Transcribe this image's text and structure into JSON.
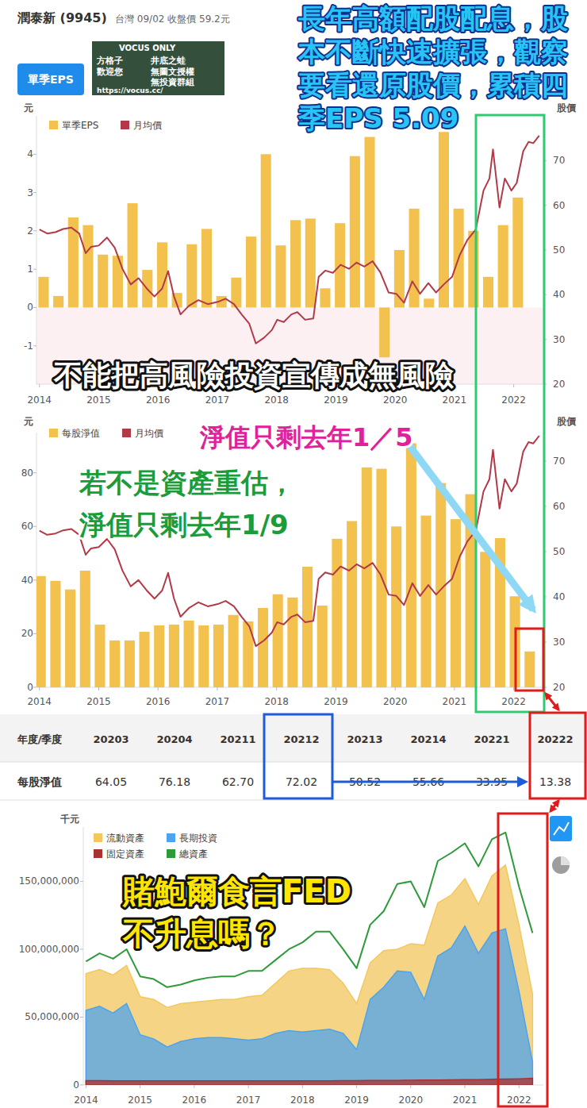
{
  "header": {
    "title": "潤泰新 (9945)",
    "subtitle": "台灣 09/02 收盤價 59.2元"
  },
  "watermark": [
    "VOCUS ONLY",
    "方格子",
    "井底之蛙",
    "歡迎您",
    "無圖文授權",
    "無投資群組",
    "https://vocus.cc/"
  ],
  "tab": "單季EPS",
  "annotations": {
    "top_note": [
      "長年高額配股配息，股",
      "本不斷快速擴張，觀察",
      "要看還原股價，累積四",
      "季EPS 5.09"
    ],
    "warning": "不能把高風險投資宣傳成無風險",
    "nav_note": "淨值只剩去年1／5",
    "revalue_note": [
      "若不是資產重估，",
      "淨值只剩去年1/9"
    ],
    "fed_note": [
      "賭鮑爾食言FED",
      "不升息嗎？"
    ]
  },
  "chart_data": [
    {
      "type": "bar",
      "ylabel": "元",
      "y2label": "股價",
      "legend": "top-left",
      "grid": false,
      "xlim": [
        2013.95,
        2022.5
      ],
      "xticks": [
        2014,
        2015,
        2016,
        2017,
        2018,
        2019,
        2020,
        2021,
        2022
      ],
      "ylim": [
        -2,
        5
      ],
      "yticks": [
        -1,
        0,
        1,
        2,
        3,
        4
      ],
      "y2lim": [
        20,
        80
      ],
      "y2ticks": [
        20,
        30,
        40,
        50,
        60,
        70
      ],
      "series": [
        {
          "name": "單季EPS",
          "type": "bar",
          "color": "#f2c14e",
          "x": [
            2014.07,
            2014.32,
            2014.57,
            2014.82,
            2015.07,
            2015.32,
            2015.57,
            2015.82,
            2016.07,
            2016.32,
            2016.57,
            2016.82,
            2017.07,
            2017.32,
            2017.57,
            2017.82,
            2018.07,
            2018.32,
            2018.57,
            2018.82,
            2019.07,
            2019.32,
            2019.57,
            2019.82,
            2020.07,
            2020.32,
            2020.57,
            2020.82,
            2021.07,
            2021.32,
            2021.57,
            2021.82,
            2022.07
          ],
          "values": [
            0.8,
            0.3,
            2.35,
            2.15,
            1.38,
            1.35,
            2.72,
            0.98,
            1.7,
            0.38,
            1.65,
            2.05,
            0.3,
            0.78,
            1.85,
            4.0,
            1.62,
            2.28,
            2.32,
            0.5,
            2.2,
            3.95,
            4.45,
            -1.3,
            1.5,
            2.58,
            0.23,
            4.58,
            2.58,
            2.0,
            0.8,
            2.15,
            2.87
          ]
        },
        {
          "name": "月均價",
          "type": "line",
          "axis": "y2",
          "color": "#b23a48",
          "x": [
            2014.0,
            2014.13,
            2014.27,
            2014.4,
            2014.54,
            2014.67,
            2014.78,
            2014.87,
            2015.0,
            2015.14,
            2015.27,
            2015.4,
            2015.54,
            2015.67,
            2015.81,
            2015.94,
            2016.07,
            2016.17,
            2016.27,
            2016.38,
            2016.52,
            2016.68,
            2016.84,
            2017.01,
            2017.14,
            2017.28,
            2017.41,
            2017.54,
            2017.65,
            2017.79,
            2017.92,
            2018.01,
            2018.12,
            2018.25,
            2018.35,
            2018.48,
            2018.62,
            2018.71,
            2018.82,
            2018.95,
            2019.08,
            2019.22,
            2019.35,
            2019.48,
            2019.62,
            2019.75,
            2019.89,
            2020.02,
            2020.15,
            2020.29,
            2020.42,
            2020.56,
            2020.69,
            2020.82,
            2020.96,
            2021.09,
            2021.22,
            2021.36,
            2021.49,
            2021.59,
            2021.65,
            2021.76,
            2021.85,
            2021.96,
            2022.05,
            2022.16,
            2022.25,
            2022.33,
            2022.43
          ],
          "values": [
            54.6,
            53.7,
            54,
            54.7,
            55,
            53.7,
            49.3,
            50.7,
            51,
            52.8,
            50.5,
            45.8,
            42.3,
            43.7,
            41.4,
            39.6,
            41.4,
            45.3,
            39.6,
            35.6,
            37.5,
            38.8,
            37.9,
            38.4,
            39.1,
            37.9,
            35.6,
            33.5,
            29.1,
            30.4,
            32.1,
            34.4,
            33.9,
            35.6,
            36.1,
            34.4,
            34.7,
            44,
            45.4,
            44.9,
            46.7,
            45.8,
            47.2,
            46.3,
            47.5,
            45,
            40.5,
            40.2,
            38.2,
            43,
            40.2,
            42.6,
            40.5,
            42.3,
            44,
            48.9,
            52.3,
            54.6,
            63.3,
            66,
            72.5,
            59.5,
            66,
            63.3,
            65,
            72.1,
            74.2,
            73.9,
            75.6
          ]
        }
      ]
    },
    {
      "type": "bar",
      "ylabel": "元",
      "y2label": "股價",
      "legend": "top-left",
      "grid": false,
      "xlim": [
        2013.95,
        2022.5
      ],
      "xticks": [
        2014,
        2015,
        2016,
        2017,
        2018,
        2019,
        2020,
        2021,
        2022
      ],
      "ylim": [
        0,
        95
      ],
      "yticks": [
        0,
        20,
        40,
        60,
        80
      ],
      "y2lim": [
        20,
        76.3
      ],
      "y2ticks": [
        20,
        30,
        40,
        50,
        60,
        70
      ],
      "series": [
        {
          "name": "每股淨值",
          "type": "bar",
          "color": "#f2c14e",
          "x": [
            2014.02,
            2014.27,
            2014.52,
            2014.77,
            2015.02,
            2015.27,
            2015.52,
            2015.77,
            2016.02,
            2016.27,
            2016.52,
            2016.77,
            2017.02,
            2017.27,
            2017.52,
            2017.77,
            2018.02,
            2018.27,
            2018.52,
            2018.77,
            2019.02,
            2019.27,
            2019.52,
            2019.77,
            2020.02,
            2020.27,
            2020.52,
            2020.77,
            2021.02,
            2021.27,
            2021.52,
            2021.77,
            2022.02,
            2022.27
          ],
          "values": [
            41.5,
            39.7,
            36.5,
            43.5,
            23.4,
            17.5,
            17.5,
            20.7,
            23.1,
            23.4,
            24.9,
            23.1,
            23.4,
            27.0,
            24.6,
            29.6,
            34.7,
            33.5,
            45.0,
            30.5,
            55.4,
            62.0,
            82.0,
            81.5,
            60.0,
            91.0,
            64.05,
            76.18,
            62.7,
            72.02,
            50.52,
            55.66,
            33.95,
            13.38
          ]
        },
        {
          "name": "月均價",
          "type": "line",
          "axis": "y2",
          "color": "#b23a48",
          "x": [
            2014.0,
            2014.13,
            2014.27,
            2014.4,
            2014.54,
            2014.67,
            2014.78,
            2014.87,
            2015.0,
            2015.14,
            2015.27,
            2015.4,
            2015.54,
            2015.67,
            2015.81,
            2015.94,
            2016.07,
            2016.17,
            2016.27,
            2016.38,
            2016.52,
            2016.68,
            2016.84,
            2017.01,
            2017.14,
            2017.28,
            2017.41,
            2017.54,
            2017.65,
            2017.79,
            2017.92,
            2018.01,
            2018.12,
            2018.25,
            2018.35,
            2018.48,
            2018.62,
            2018.71,
            2018.82,
            2018.95,
            2019.08,
            2019.22,
            2019.35,
            2019.48,
            2019.62,
            2019.75,
            2019.89,
            2020.02,
            2020.15,
            2020.29,
            2020.42,
            2020.56,
            2020.69,
            2020.82,
            2020.96,
            2021.09,
            2021.22,
            2021.36,
            2021.49,
            2021.59,
            2021.65,
            2021.76,
            2021.85,
            2021.96,
            2022.05,
            2022.16,
            2022.25,
            2022.33,
            2022.43
          ],
          "values": [
            54.6,
            53.7,
            54,
            54.7,
            55,
            53.7,
            49.3,
            50.7,
            51,
            52.8,
            50.5,
            45.8,
            42.3,
            43.7,
            41.4,
            39.6,
            41.4,
            45.3,
            39.6,
            35.6,
            37.5,
            38.8,
            37.9,
            38.4,
            39.1,
            37.9,
            35.6,
            33.5,
            29.1,
            30.4,
            32.1,
            34.4,
            33.9,
            35.6,
            36.1,
            34.4,
            34.7,
            44,
            45.4,
            44.9,
            46.7,
            45.8,
            47.2,
            46.3,
            47.5,
            45,
            40.5,
            40.2,
            38.2,
            43,
            40.2,
            42.6,
            40.5,
            42.3,
            44,
            48.9,
            52.3,
            54.6,
            63.3,
            66,
            72.5,
            59.5,
            66,
            63.3,
            65,
            72.1,
            74.2,
            73.9,
            75.6
          ]
        }
      ]
    },
    {
      "type": "area",
      "ylabel": "千元",
      "legend": "top-left",
      "grid": false,
      "xlim": [
        2013.95,
        2022.45
      ],
      "xticks": [
        2014,
        2015,
        2016,
        2017,
        2018,
        2019,
        2020,
        2021,
        2022
      ],
      "ylim": [
        0,
        190000000
      ],
      "yticks": [
        0,
        {
          "value": 50000000,
          "label": "50,000,000"
        },
        {
          "value": 100000000,
          "label": "100,000,000"
        },
        {
          "value": 150000000,
          "label": "150,000,000"
        }
      ],
      "series": [
        {
          "name": "流動資產",
          "type": "area",
          "color": "#f2c75c",
          "x": [
            2014.0,
            2014.25,
            2014.5,
            2014.75,
            2015.0,
            2015.25,
            2015.5,
            2015.75,
            2016.0,
            2016.25,
            2016.5,
            2016.75,
            2017.0,
            2017.25,
            2017.5,
            2017.75,
            2018.0,
            2018.25,
            2018.5,
            2018.75,
            2019.0,
            2019.25,
            2019.5,
            2019.75,
            2020.0,
            2020.25,
            2020.5,
            2020.75,
            2021.0,
            2021.25,
            2021.5,
            2021.75,
            2022.0,
            2022.25
          ],
          "values": [
            82000000,
            85000000,
            81000000,
            88000000,
            65000000,
            63000000,
            57000000,
            60000000,
            61000000,
            62000000,
            63000000,
            63000000,
            65000000,
            66000000,
            75000000,
            84000000,
            86000000,
            86000000,
            85000000,
            75000000,
            60000000,
            90000000,
            99000000,
            100000000,
            104000000,
            103000000,
            134000000,
            140000000,
            152000000,
            133000000,
            154000000,
            162000000,
            118000000,
            67000000
          ]
        },
        {
          "name": "長期投資",
          "type": "area",
          "color": "#4da3ee",
          "x": [
            2014.0,
            2014.25,
            2014.5,
            2014.75,
            2015.0,
            2015.25,
            2015.5,
            2015.75,
            2016.0,
            2016.25,
            2016.5,
            2016.75,
            2017.0,
            2017.25,
            2017.5,
            2017.75,
            2018.0,
            2018.25,
            2018.5,
            2018.75,
            2019.0,
            2019.25,
            2019.5,
            2019.75,
            2020.0,
            2020.25,
            2020.5,
            2020.75,
            2021.0,
            2021.25,
            2021.5,
            2021.75,
            2022.0,
            2022.25
          ],
          "values": [
            55000000,
            58000000,
            53000000,
            60000000,
            37000000,
            34000000,
            28000000,
            32000000,
            34000000,
            35000000,
            35000000,
            34000000,
            33000000,
            34000000,
            38000000,
            40000000,
            39000000,
            40000000,
            41000000,
            38000000,
            26000000,
            63000000,
            72000000,
            84000000,
            83000000,
            63000000,
            95000000,
            101000000,
            117000000,
            97000000,
            112000000,
            115000000,
            69000000,
            17000000
          ]
        },
        {
          "name": "固定資產",
          "type": "area",
          "color": "#a83232",
          "x": [
            2014.0,
            2014.25,
            2014.5,
            2014.75,
            2015.0,
            2015.25,
            2015.5,
            2015.75,
            2016.0,
            2016.25,
            2016.5,
            2016.75,
            2017.0,
            2017.25,
            2017.5,
            2017.75,
            2018.0,
            2018.25,
            2018.5,
            2018.75,
            2019.0,
            2019.25,
            2019.5,
            2019.75,
            2020.0,
            2020.25,
            2020.5,
            2020.75,
            2021.0,
            2021.25,
            2021.5,
            2021.75,
            2022.0,
            2022.25
          ],
          "values": [
            3200000,
            3200000,
            3100000,
            3100000,
            3000000,
            3000000,
            3000000,
            3000000,
            3000000,
            3000000,
            3000000,
            3000000,
            3000000,
            3000000,
            3000000,
            3100000,
            3100000,
            3100000,
            3100000,
            3200000,
            3200000,
            3300000,
            3300000,
            3400000,
            3500000,
            3600000,
            3700000,
            3800000,
            3900000,
            4000000,
            4200000,
            4400000,
            4600000,
            5000000
          ]
        },
        {
          "name": "總資產",
          "type": "line",
          "color": "#2e9a3a",
          "x": [
            2014.0,
            2014.25,
            2014.5,
            2014.75,
            2015.0,
            2015.25,
            2015.5,
            2015.75,
            2016.0,
            2016.25,
            2016.5,
            2016.75,
            2017.0,
            2017.25,
            2017.5,
            2017.75,
            2018.0,
            2018.25,
            2018.5,
            2018.75,
            2019.0,
            2019.25,
            2019.5,
            2019.75,
            2020.0,
            2020.25,
            2020.5,
            2020.75,
            2021.0,
            2021.25,
            2021.5,
            2021.75,
            2022.0,
            2022.25
          ],
          "values": [
            91000000,
            97000000,
            93000000,
            100000000,
            80000000,
            78000000,
            72000000,
            74000000,
            77000000,
            79000000,
            80000000,
            80000000,
            84000000,
            84000000,
            92000000,
            100000000,
            105000000,
            113000000,
            113000000,
            100000000,
            86000000,
            118000000,
            128000000,
            148000000,
            150000000,
            131000000,
            165000000,
            171000000,
            178000000,
            161000000,
            181000000,
            186000000,
            146000000,
            112000000
          ]
        }
      ]
    }
  ],
  "table": {
    "header": [
      "年度/季度",
      "20203",
      "20204",
      "20211",
      "20212",
      "20213",
      "20214",
      "20221",
      "20222"
    ],
    "rows": [
      [
        "每股淨值",
        "64.05",
        "76.18",
        "62.70",
        "72.02",
        "50.52",
        "55.66",
        "33.95",
        "13.38"
      ]
    ]
  }
}
